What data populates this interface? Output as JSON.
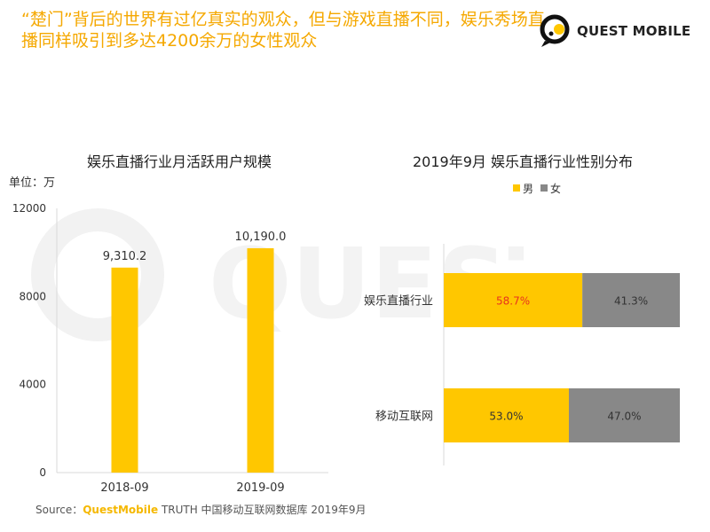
{
  "headline": "“楚门”背后的世界有过亿真实的观众，但与游戏直播不同，娱乐秀场直播同样吸引到多达4200余万的女性观众",
  "logo": {
    "text": "QUEST MOBILE"
  },
  "watermark": {
    "text": "QUEST"
  },
  "colors": {
    "accent": "#FFC700",
    "secondary": "#888888",
    "headline": "#F5A800",
    "highlight": "#E8331E"
  },
  "chart_data": [
    {
      "type": "bar",
      "title": "娱乐直播行业月活跃用户规模",
      "unit": "单位：万",
      "categories": [
        "2018-09",
        "2019-09"
      ],
      "values": [
        9310.2,
        10190.0
      ],
      "value_labels": [
        "9,310.2",
        "10,190.0"
      ],
      "ylim": [
        0,
        12000
      ],
      "yticks": [
        "0",
        "4000",
        "8000",
        "12000"
      ],
      "grid": false
    },
    {
      "type": "bar",
      "orientation": "horizontal",
      "stacked": true,
      "title": "2019年9月 娱乐直播行业性别分布",
      "categories": [
        "娱乐直播行业",
        "移动互联网"
      ],
      "series": [
        {
          "name": "男",
          "values": [
            58.7,
            53.0
          ],
          "labels": [
            "58.7%",
            "53.0%"
          ]
        },
        {
          "name": "女",
          "values": [
            41.3,
            47.0
          ],
          "labels": [
            "41.3%",
            "47.0%"
          ]
        }
      ],
      "legend": "top"
    }
  ],
  "source": {
    "prefix": "Source：",
    "brand": "QuestMobile",
    "rest": " TRUTH 中国移动互联网数据库 2019年9月"
  }
}
